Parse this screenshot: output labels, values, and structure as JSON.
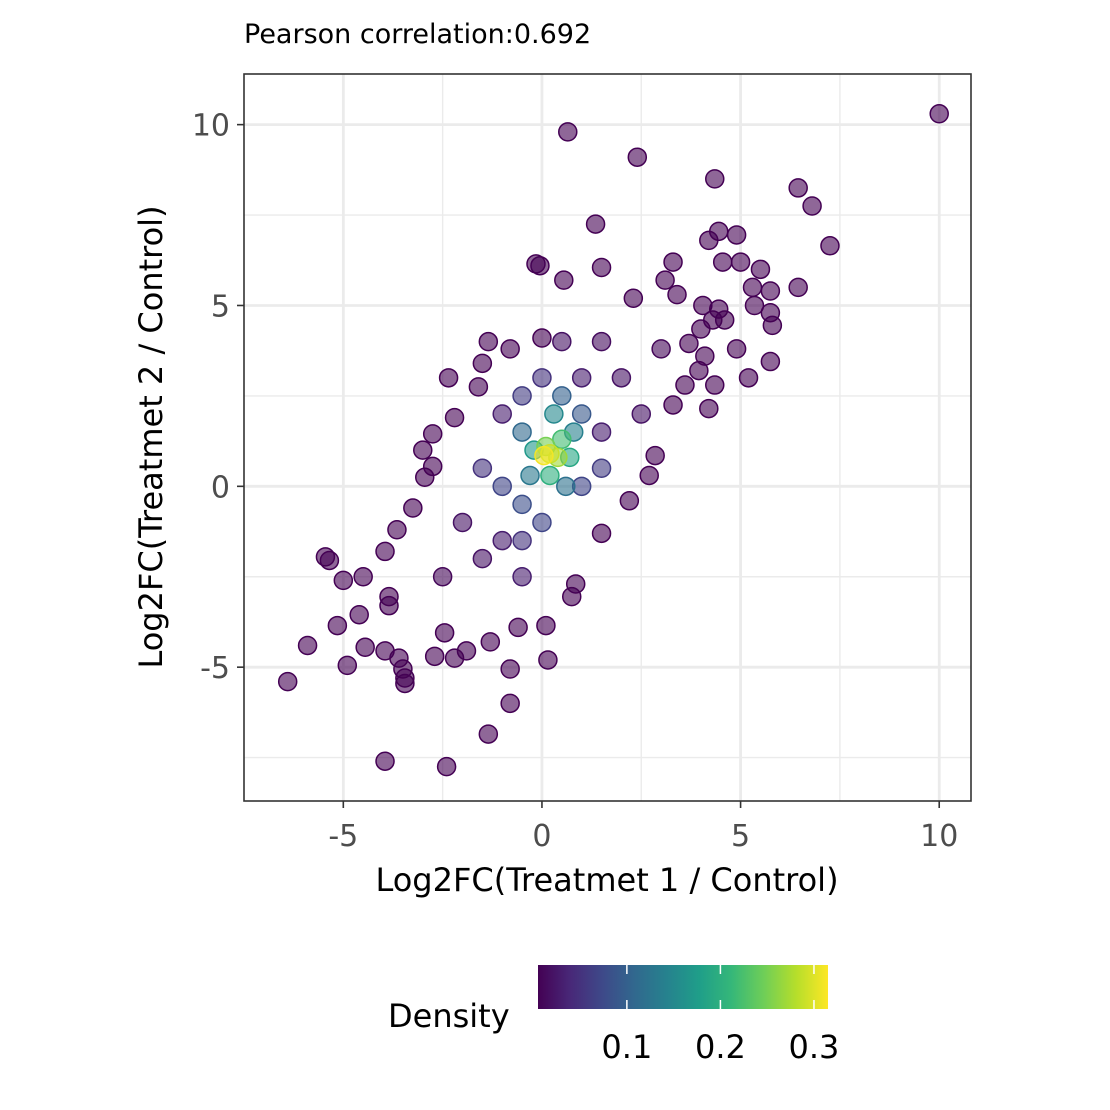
{
  "chart_data": {
    "type": "scatter",
    "title": "Pearson correlation:0.692",
    "xlabel": "Log2FC(Treatmet 1 / Control)",
    "ylabel": "Log2FC(Treatmet 2 / Control)",
    "xlim": [
      -7.5,
      10.8
    ],
    "ylim": [
      -8.7,
      11.4
    ],
    "x_ticks": [
      -5,
      0,
      5,
      10
    ],
    "x_tick_labels": [
      "-5",
      "0",
      "5",
      "10"
    ],
    "y_ticks": [
      -5,
      0,
      5,
      10
    ],
    "y_tick_labels": [
      "-5",
      "0",
      "5",
      "10"
    ],
    "grid": true,
    "color_scale": "viridis",
    "legend": {
      "title": "Density",
      "position": "bottom",
      "range": [
        0.005,
        0.315
      ],
      "breaks": [
        0.1,
        0.2,
        0.3
      ],
      "break_labels": [
        "0.1",
        "0.2",
        "0.3"
      ],
      "colors": [
        "#440154",
        "#482878",
        "#3e4989",
        "#31688e",
        "#26828e",
        "#1f9e89",
        "#35b779",
        "#6ece58",
        "#b5de2b",
        "#fde725"
      ]
    },
    "series": [
      {
        "points": [
          {
            "x": 10.0,
            "y": 10.3,
            "d": 0.005
          },
          {
            "x": 0.65,
            "y": 9.8,
            "d": 0.005
          },
          {
            "x": 2.4,
            "y": 9.1,
            "d": 0.005
          },
          {
            "x": 4.35,
            "y": 8.5,
            "d": 0.005
          },
          {
            "x": 6.45,
            "y": 8.25,
            "d": 0.005
          },
          {
            "x": 6.8,
            "y": 7.75,
            "d": 0.005
          },
          {
            "x": 1.35,
            "y": 7.25,
            "d": 0.005
          },
          {
            "x": 4.45,
            "y": 7.05,
            "d": 0.005
          },
          {
            "x": 4.2,
            "y": 6.8,
            "d": 0.005
          },
          {
            "x": 4.9,
            "y": 6.95,
            "d": 0.005
          },
          {
            "x": 7.25,
            "y": 6.65,
            "d": 0.005
          },
          {
            "x": 5.0,
            "y": 6.2,
            "d": 0.005
          },
          {
            "x": 4.55,
            "y": 6.2,
            "d": 0.005
          },
          {
            "x": 5.5,
            "y": 6.0,
            "d": 0.005
          },
          {
            "x": 6.45,
            "y": 5.5,
            "d": 0.005
          },
          {
            "x": 5.3,
            "y": 5.5,
            "d": 0.005
          },
          {
            "x": 5.75,
            "y": 5.4,
            "d": 0.005
          },
          {
            "x": 5.35,
            "y": 5.0,
            "d": 0.005
          },
          {
            "x": 5.75,
            "y": 4.8,
            "d": 0.005
          },
          {
            "x": 5.8,
            "y": 4.45,
            "d": 0.005
          },
          {
            "x": 4.9,
            "y": 3.8,
            "d": 0.005
          },
          {
            "x": 5.75,
            "y": 3.45,
            "d": 0.005
          },
          {
            "x": 5.2,
            "y": 3.0,
            "d": 0.005
          },
          {
            "x": 4.35,
            "y": 2.8,
            "d": 0.005
          },
          {
            "x": 4.2,
            "y": 2.15,
            "d": 0.005
          },
          {
            "x": -0.15,
            "y": 6.15,
            "d": 0.005
          },
          {
            "x": -0.05,
            "y": 6.1,
            "d": 0.005
          },
          {
            "x": 0.55,
            "y": 5.7,
            "d": 0.005
          },
          {
            "x": 1.5,
            "y": 6.05,
            "d": 0.005
          },
          {
            "x": 3.3,
            "y": 6.2,
            "d": 0.005
          },
          {
            "x": -2.35,
            "y": 3.0,
            "d": 0.005
          },
          {
            "x": -2.2,
            "y": 1.9,
            "d": 0.005
          },
          {
            "x": -2.75,
            "y": 1.45,
            "d": 0.005
          },
          {
            "x": -3.0,
            "y": 1.0,
            "d": 0.005
          },
          {
            "x": -2.75,
            "y": 0.55,
            "d": 0.005
          },
          {
            "x": -2.95,
            "y": 0.25,
            "d": 0.005
          },
          {
            "x": -3.25,
            "y": -0.6,
            "d": 0.005
          },
          {
            "x": -3.65,
            "y": -1.2,
            "d": 0.005
          },
          {
            "x": -3.95,
            "y": -1.8,
            "d": 0.005
          },
          {
            "x": -5.45,
            "y": -1.95,
            "d": 0.005
          },
          {
            "x": -5.35,
            "y": -2.05,
            "d": 0.005
          },
          {
            "x": -5.0,
            "y": -2.6,
            "d": 0.005
          },
          {
            "x": -4.5,
            "y": -2.5,
            "d": 0.005
          },
          {
            "x": -3.85,
            "y": -3.05,
            "d": 0.005
          },
          {
            "x": -3.85,
            "y": -3.3,
            "d": 0.005
          },
          {
            "x": -4.6,
            "y": -3.55,
            "d": 0.005
          },
          {
            "x": -5.15,
            "y": -3.85,
            "d": 0.005
          },
          {
            "x": -5.9,
            "y": -4.4,
            "d": 0.005
          },
          {
            "x": -6.4,
            "y": -5.4,
            "d": 0.005
          },
          {
            "x": -4.9,
            "y": -4.95,
            "d": 0.005
          },
          {
            "x": -4.45,
            "y": -4.45,
            "d": 0.005
          },
          {
            "x": -3.95,
            "y": -4.55,
            "d": 0.005
          },
          {
            "x": -3.6,
            "y": -4.75,
            "d": 0.005
          },
          {
            "x": -3.5,
            "y": -5.05,
            "d": 0.005
          },
          {
            "x": -3.45,
            "y": -5.3,
            "d": 0.005
          },
          {
            "x": -3.45,
            "y": -5.45,
            "d": 0.005
          },
          {
            "x": -3.95,
            "y": -7.6,
            "d": 0.005
          },
          {
            "x": -2.4,
            "y": -7.75,
            "d": 0.005
          },
          {
            "x": -1.35,
            "y": -6.85,
            "d": 0.005
          },
          {
            "x": -0.8,
            "y": -6.0,
            "d": 0.005
          },
          {
            "x": -0.8,
            "y": -5.05,
            "d": 0.005
          },
          {
            "x": 0.15,
            "y": -4.8,
            "d": 0.005
          },
          {
            "x": -2.7,
            "y": -4.7,
            "d": 0.005
          },
          {
            "x": -2.2,
            "y": -4.75,
            "d": 0.005
          },
          {
            "x": -1.9,
            "y": -4.55,
            "d": 0.005
          },
          {
            "x": -1.3,
            "y": -4.3,
            "d": 0.005
          },
          {
            "x": -2.45,
            "y": -4.05,
            "d": 0.005
          },
          {
            "x": -0.6,
            "y": -3.9,
            "d": 0.005
          },
          {
            "x": 0.1,
            "y": -3.85,
            "d": 0.005
          },
          {
            "x": 0.75,
            "y": -3.05,
            "d": 0.005
          },
          {
            "x": 0.85,
            "y": -2.7,
            "d": 0.005
          },
          {
            "x": 1.5,
            "y": -1.3,
            "d": 0.005
          },
          {
            "x": 2.2,
            "y": -0.4,
            "d": 0.005
          },
          {
            "x": 2.85,
            "y": 0.85,
            "d": 0.005
          },
          {
            "x": 2.7,
            "y": 0.3,
            "d": 0.005
          },
          {
            "x": 3.3,
            "y": 2.25,
            "d": 0.005
          },
          {
            "x": 3.6,
            "y": 2.8,
            "d": 0.005
          },
          {
            "x": 3.95,
            "y": 3.2,
            "d": 0.005
          },
          {
            "x": 4.1,
            "y": 3.6,
            "d": 0.005
          },
          {
            "x": 3.7,
            "y": 3.95,
            "d": 0.005
          },
          {
            "x": 4.0,
            "y": 4.35,
            "d": 0.005
          },
          {
            "x": 4.3,
            "y": 4.6,
            "d": 0.005
          },
          {
            "x": 4.45,
            "y": 4.9,
            "d": 0.005
          },
          {
            "x": 4.6,
            "y": 4.6,
            "d": 0.005
          },
          {
            "x": 4.05,
            "y": 5.0,
            "d": 0.005
          },
          {
            "x": 3.4,
            "y": 5.3,
            "d": 0.005
          },
          {
            "x": 3.1,
            "y": 5.7,
            "d": 0.005
          },
          {
            "x": 2.3,
            "y": 5.2,
            "d": 0.005
          },
          {
            "x": -1.35,
            "y": 4.0,
            "d": 0.005
          },
          {
            "x": -1.5,
            "y": 3.4,
            "d": 0.005
          },
          {
            "x": -0.8,
            "y": 3.8,
            "d": 0.005
          },
          {
            "x": 0.0,
            "y": 4.1,
            "d": 0.005
          },
          {
            "x": -1.6,
            "y": 2.75,
            "d": 0.005
          },
          {
            "x": 1.5,
            "y": 1.5,
            "d": 0.03
          },
          {
            "x": -1.0,
            "y": -1.5,
            "d": 0.03
          },
          {
            "x": -0.5,
            "y": -2.5,
            "d": 0.03
          },
          {
            "x": -1.5,
            "y": -2.0,
            "d": 0.02
          },
          {
            "x": -2.0,
            "y": -1.0,
            "d": 0.02
          },
          {
            "x": 1.0,
            "y": 3.0,
            "d": 0.03
          },
          {
            "x": 2.0,
            "y": 3.0,
            "d": 0.02
          },
          {
            "x": 2.5,
            "y": 2.0,
            "d": 0.02
          },
          {
            "x": 1.5,
            "y": 4.0,
            "d": 0.015
          },
          {
            "x": 0.5,
            "y": 4.0,
            "d": 0.02
          },
          {
            "x": -1.0,
            "y": 2.0,
            "d": 0.03
          },
          {
            "x": 3.0,
            "y": 3.8,
            "d": 0.01
          },
          {
            "x": -2.5,
            "y": -2.5,
            "d": 0.01
          },
          {
            "x": 0.0,
            "y": 3.0,
            "d": 0.05
          },
          {
            "x": -0.5,
            "y": 2.5,
            "d": 0.06
          },
          {
            "x": -1.5,
            "y": 0.5,
            "d": 0.05
          },
          {
            "x": -1.0,
            "y": 0.0,
            "d": 0.07
          },
          {
            "x": -0.5,
            "y": -0.5,
            "d": 0.08
          },
          {
            "x": 0.0,
            "y": -1.0,
            "d": 0.07
          },
          {
            "x": -0.5,
            "y": -1.5,
            "d": 0.05
          },
          {
            "x": 1.0,
            "y": 0.0,
            "d": 0.07
          },
          {
            "x": 1.5,
            "y": 0.5,
            "d": 0.06
          },
          {
            "x": 1.0,
            "y": 2.0,
            "d": 0.09
          },
          {
            "x": 0.5,
            "y": 2.5,
            "d": 0.1
          },
          {
            "x": -0.5,
            "y": 1.5,
            "d": 0.11
          },
          {
            "x": -0.3,
            "y": 0.3,
            "d": 0.13
          },
          {
            "x": 0.8,
            "y": 1.5,
            "d": 0.14
          },
          {
            "x": 0.6,
            "y": 0.0,
            "d": 0.12
          },
          {
            "x": 0.3,
            "y": 2.0,
            "d": 0.15
          },
          {
            "x": -0.2,
            "y": 1.0,
            "d": 0.17
          },
          {
            "x": 0.7,
            "y": 0.8,
            "d": 0.19
          },
          {
            "x": 0.2,
            "y": 0.3,
            "d": 0.2
          },
          {
            "x": 0.5,
            "y": 1.3,
            "d": 0.22
          },
          {
            "x": 0.1,
            "y": 1.1,
            "d": 0.25
          },
          {
            "x": 0.4,
            "y": 0.8,
            "d": 0.27
          },
          {
            "x": 0.2,
            "y": 0.9,
            "d": 0.29
          },
          {
            "x": 0.05,
            "y": 0.85,
            "d": 0.31
          }
        ]
      }
    ]
  }
}
